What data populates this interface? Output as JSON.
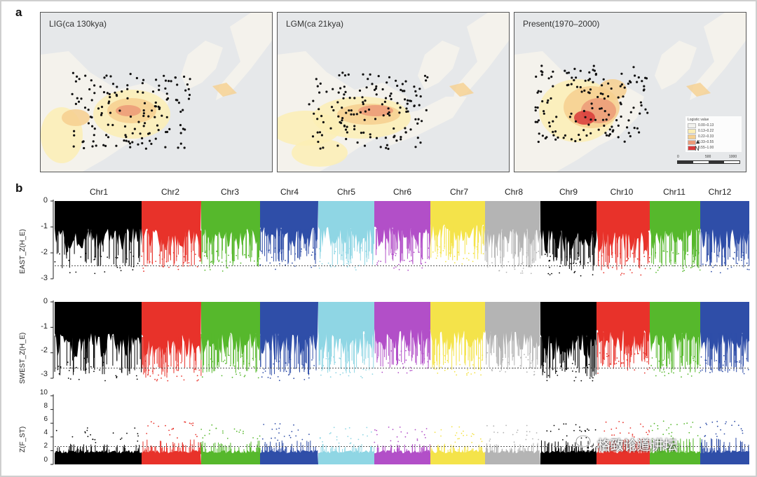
{
  "panel_a": {
    "letter": "a",
    "maps": [
      {
        "title": "LIG(ca 130kya)"
      },
      {
        "title": "LGM(ca 21kya)"
      },
      {
        "title": "Present(1970–2000)"
      }
    ],
    "legend": {
      "title": "Logistic value",
      "ranges": [
        "0.00–0.13",
        "0.13–0.22",
        "0.22–0.33",
        "0.33–0.55",
        "0.55–1.00"
      ],
      "colors": [
        "#f2f2ee",
        "#fbeeb5",
        "#f6cf8f",
        "#ec9a78",
        "#d8393a"
      ]
    },
    "scale_labels": [
      "0",
      "500",
      "1000"
    ],
    "north_label": "N"
  },
  "panel_b": {
    "letter": "b",
    "chromosomes": [
      "Chr1",
      "Chr2",
      "Chr3",
      "Chr4",
      "Chr5",
      "Chr6",
      "Chr7",
      "Chr8",
      "Chr9",
      "Chr10",
      "Chr11",
      "Chr12"
    ],
    "colors": [
      "#000000",
      "#e8322a",
      "#56b82c",
      "#2f4ea8",
      "#8fd6e4",
      "#b24fc8",
      "#f4e34a",
      "#b4b4b4",
      "#000000",
      "#e8322a",
      "#56b82c",
      "#2f4ea8"
    ]
  },
  "chart_data": [
    {
      "type": "scatter",
      "title": "",
      "ylabel": "EAST_Z(H_E)",
      "ylim": [
        -3,
        0
      ],
      "yticks": [
        "0",
        "-1",
        "-2",
        "-3"
      ],
      "threshold": -2.5,
      "categories": [
        "Chr1",
        "Chr2",
        "Chr3",
        "Chr4",
        "Chr5",
        "Chr6",
        "Chr7",
        "Chr8",
        "Chr9",
        "Chr10",
        "Chr11",
        "Chr12"
      ],
      "typical_min": [
        -1.9,
        -1.9,
        -1.9,
        -1.8,
        -1.8,
        -1.8,
        -1.6,
        -1.9,
        -2.0,
        -2.0,
        -1.9,
        -1.9
      ]
    },
    {
      "type": "scatter",
      "title": "",
      "ylabel": "SWEST_Z(H_E)",
      "ylim": [
        -3,
        0
      ],
      "yticks": [
        "0",
        "-1",
        "-2",
        "-3"
      ],
      "threshold": -2.6,
      "categories": [
        "Chr1",
        "Chr2",
        "Chr3",
        "Chr4",
        "Chr5",
        "Chr6",
        "Chr7",
        "Chr8",
        "Chr9",
        "Chr10",
        "Chr11",
        "Chr12"
      ],
      "typical_min": [
        -2.2,
        -2.3,
        -2.1,
        -2.2,
        -2.1,
        -1.9,
        -2.0,
        -2.0,
        -2.3,
        -2.0,
        -2.1,
        -2.1
      ]
    },
    {
      "type": "scatter",
      "title": "",
      "ylabel": "Z(F_ST)",
      "ylim": [
        0,
        10
      ],
      "yticks": [
        "0",
        "2",
        "4",
        "6",
        "8",
        "10"
      ],
      "threshold": 2.6,
      "categories": [
        "Chr1",
        "Chr2",
        "Chr3",
        "Chr4",
        "Chr5",
        "Chr6",
        "Chr7",
        "Chr8",
        "Chr9",
        "Chr10",
        "Chr11",
        "Chr12"
      ],
      "typical_max": [
        3.0,
        3.8,
        3.5,
        3.5,
        3.0,
        3.0,
        3.0,
        3.2,
        3.5,
        3.8,
        4.0,
        4.0
      ]
    }
  ],
  "watermark": "格致论道讲坛"
}
